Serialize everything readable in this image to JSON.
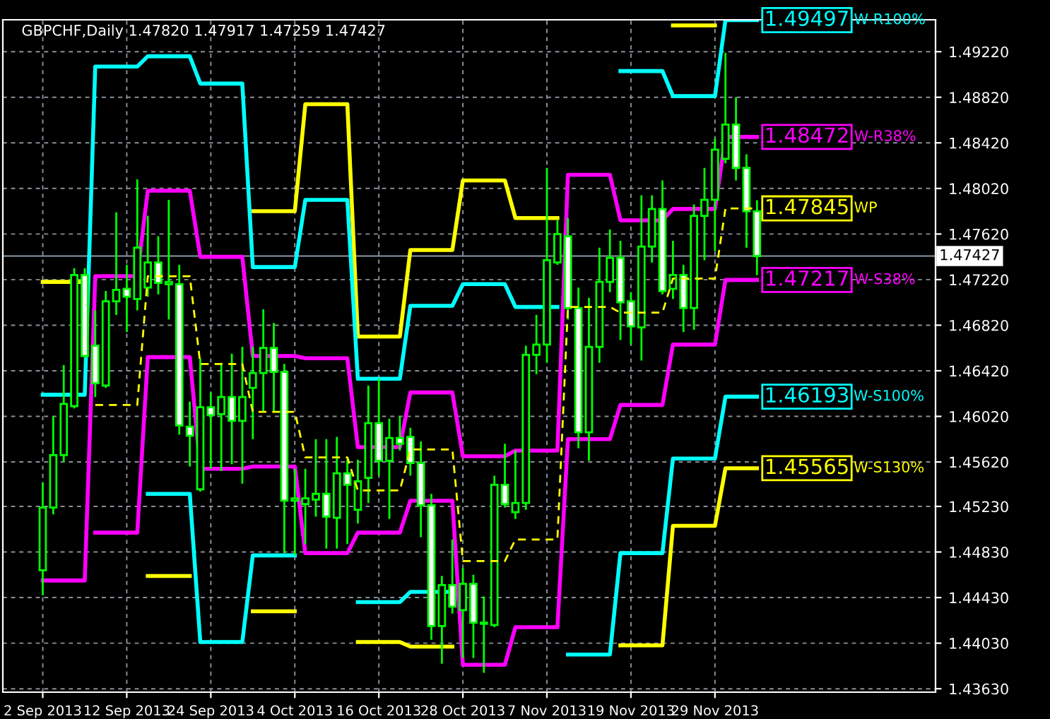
{
  "chart_data": {
    "type": "candlestick",
    "title": "GBPCHF,Daily 1.47820 1.47917 1.47259 1.47427",
    "categories": [
      "2 Sep 2013",
      null,
      null,
      null,
      null,
      null,
      null,
      null,
      "12 Sep 2013",
      null,
      null,
      null,
      null,
      null,
      null,
      null,
      "24 Sep 2013",
      null,
      null,
      null,
      null,
      null,
      null,
      null,
      "4 Oct 2013",
      null,
      null,
      null,
      null,
      null,
      null,
      null,
      "16 Oct 2013",
      null,
      null,
      null,
      null,
      null,
      null,
      null,
      "28 Oct 2013",
      null,
      null,
      null,
      null,
      null,
      null,
      null,
      "7 Nov 2013",
      null,
      null,
      null,
      null,
      null,
      null,
      null,
      "19 Nov 2013",
      null,
      null,
      null,
      null,
      null,
      null,
      null,
      "29 Nov 2013",
      null,
      null,
      null,
      null
    ],
    "ohlc": [
      [
        1.4467,
        1.4544,
        1.4445,
        1.4522
      ],
      [
        1.4522,
        1.4602,
        1.4516,
        1.4568
      ],
      [
        1.4568,
        1.4647,
        1.4562,
        1.4613
      ],
      [
        1.4611,
        1.4732,
        1.4609,
        1.4726
      ],
      [
        1.4726,
        1.4732,
        1.4653,
        1.4655
      ],
      [
        1.4664,
        1.4695,
        1.4619,
        1.4631
      ],
      [
        1.4629,
        1.4712,
        1.4627,
        1.4703
      ],
      [
        1.4703,
        1.4781,
        1.4691,
        1.4713
      ],
      [
        1.4714,
        1.4735,
        1.4676,
        1.4707
      ],
      [
        1.4705,
        1.481,
        1.4695,
        1.475
      ],
      [
        1.4715,
        1.4778,
        1.4707,
        1.4737
      ],
      [
        1.4737,
        1.476,
        1.4709,
        1.4719
      ],
      [
        1.4718,
        1.4792,
        1.4687,
        1.472
      ],
      [
        1.4718,
        1.4735,
        1.4586,
        1.4594
      ],
      [
        1.4593,
        1.4615,
        1.4558,
        1.4585
      ],
      [
        1.4538,
        1.4653,
        1.4536,
        1.461
      ],
      [
        1.461,
        1.4623,
        1.4556,
        1.4603
      ],
      [
        1.4604,
        1.4649,
        1.4554,
        1.4619
      ],
      [
        1.4619,
        1.4657,
        1.456,
        1.4598
      ],
      [
        1.4598,
        1.4663,
        1.4543,
        1.4619
      ],
      [
        1.4627,
        1.4663,
        1.4582,
        1.464
      ],
      [
        1.464,
        1.4696,
        1.4606,
        1.4662
      ],
      [
        1.4662,
        1.4684,
        1.4606,
        1.4641
      ],
      [
        1.4641,
        1.4648,
        1.4482,
        1.4528
      ],
      [
        1.4528,
        1.4556,
        1.448,
        1.453
      ],
      [
        1.4525,
        1.4556,
        1.449,
        1.453
      ],
      [
        1.4529,
        1.4582,
        1.4514,
        1.4534
      ],
      [
        1.4534,
        1.4582,
        1.4486,
        1.4514
      ],
      [
        1.4513,
        1.4584,
        1.4486,
        1.4552
      ],
      [
        1.4552,
        1.4564,
        1.449,
        1.4542
      ],
      [
        1.452,
        1.4564,
        1.4508,
        1.4545
      ],
      [
        1.4548,
        1.4629,
        1.4526,
        1.4596
      ],
      [
        1.4596,
        1.4635,
        1.455,
        1.4563
      ],
      [
        1.4563,
        1.46,
        1.4512,
        1.4583
      ],
      [
        1.4583,
        1.4602,
        1.4572,
        1.4578
      ],
      [
        1.4584,
        1.4592,
        1.455,
        1.4561
      ],
      [
        1.4561,
        1.458,
        1.4496,
        1.4524
      ],
      [
        1.4524,
        1.4534,
        1.4406,
        1.4418
      ],
      [
        1.4418,
        1.4462,
        1.4385,
        1.4454
      ],
      [
        1.4454,
        1.4494,
        1.4429,
        1.4435
      ],
      [
        1.4432,
        1.4469,
        1.439,
        1.4455
      ],
      [
        1.4455,
        1.4463,
        1.439,
        1.4421
      ],
      [
        1.442,
        1.4444,
        1.4377,
        1.4421
      ],
      [
        1.4419,
        1.455,
        1.4417,
        1.4542
      ],
      [
        1.4542,
        1.4578,
        1.4522,
        1.4525
      ],
      [
        1.4518,
        1.4572,
        1.4512,
        1.4526
      ],
      [
        1.4526,
        1.4664,
        1.452,
        1.4656
      ],
      [
        1.4656,
        1.4691,
        1.4639,
        1.4665
      ],
      [
        1.4665,
        1.482,
        1.4649,
        1.4739
      ],
      [
        1.4737,
        1.4774,
        1.4735,
        1.4762
      ],
      [
        1.476,
        1.4776,
        1.4687,
        1.4697
      ],
      [
        1.4697,
        1.4715,
        1.4574,
        1.4588
      ],
      [
        1.4588,
        1.4706,
        1.4563,
        1.4663
      ],
      [
        1.4663,
        1.475,
        1.4649,
        1.472
      ],
      [
        1.472,
        1.4766,
        1.4711,
        1.4741
      ],
      [
        1.4741,
        1.4756,
        1.4669,
        1.4702
      ],
      [
        1.4703,
        1.4711,
        1.4665,
        1.4681
      ],
      [
        1.468,
        1.4796,
        1.4651,
        1.4751
      ],
      [
        1.4751,
        1.4796,
        1.4737,
        1.4784
      ],
      [
        1.4784,
        1.4809,
        1.4709,
        1.4712
      ],
      [
        1.4714,
        1.4756,
        1.4705,
        1.4726
      ],
      [
        1.4726,
        1.4735,
        1.4676,
        1.4697
      ],
      [
        1.4697,
        1.4788,
        1.4678,
        1.4778
      ],
      [
        1.4778,
        1.482,
        1.4739,
        1.4792
      ],
      [
        1.4792,
        1.4846,
        1.4747,
        1.4836
      ],
      [
        1.4828,
        1.4921,
        1.4824,
        1.4858
      ],
      [
        1.4858,
        1.4882,
        1.4809,
        1.482
      ],
      [
        1.482,
        1.4832,
        1.475,
        1.4782
      ],
      [
        1.4782,
        1.47917,
        1.47259,
        1.47427
      ]
    ],
    "series": [
      {
        "type": "line",
        "color": "#ffff00",
        "line_style": "solid",
        "values": [
          1.472,
          1.472,
          1.472,
          1.472,
          1.472,
          null,
          null,
          null,
          null,
          null,
          null,
          null,
          null,
          null,
          null,
          null,
          null,
          null,
          null,
          null,
          1.4782,
          1.4782,
          1.4782,
          1.4782,
          1.4782,
          1.4876,
          1.4876,
          1.4876,
          1.4876,
          1.4876,
          1.4672,
          1.4672,
          1.4672,
          1.4672,
          1.4672,
          1.4748,
          1.4748,
          1.4748,
          1.4748,
          1.4748,
          1.4809,
          1.4809,
          1.4809,
          1.4809,
          1.4809,
          1.4776,
          1.4776,
          1.4776,
          1.4776,
          1.4776,
          null,
          null,
          null,
          null,
          null,
          null,
          null,
          null,
          null,
          null,
          1.4945,
          1.4945,
          1.4945,
          1.4945,
          1.4945,
          null,
          null,
          null,
          null
        ]
      },
      {
        "type": "line",
        "name": "W-R100%",
        "color": "#00ffff",
        "line_style": "solid",
        "values": [
          1.4621,
          1.4621,
          1.4621,
          1.4621,
          1.4621,
          1.4909,
          1.4909,
          1.4909,
          1.4909,
          1.4909,
          1.4918,
          1.4918,
          1.4918,
          1.4918,
          1.4918,
          1.4894,
          1.4894,
          1.4894,
          1.4894,
          1.4894,
          1.4733,
          1.4733,
          1.4733,
          1.4733,
          1.4733,
          1.4792,
          1.4792,
          1.4792,
          1.4792,
          1.4792,
          1.4635,
          1.4635,
          1.4635,
          1.4635,
          1.4635,
          1.4699,
          1.4699,
          1.4699,
          1.4699,
          1.4699,
          1.4718,
          1.4718,
          1.4718,
          1.4718,
          1.4718,
          1.4698,
          1.4698,
          1.4698,
          1.4698,
          1.4698,
          null,
          null,
          null,
          null,
          null,
          1.4905,
          1.4905,
          1.4905,
          1.4905,
          1.4905,
          1.4883,
          1.4883,
          1.4883,
          1.4883,
          1.4883,
          1.49497,
          1.49497,
          1.49497,
          1.49497
        ],
        "value_labels": [
          null,
          null,
          null,
          null,
          null,
          null,
          null,
          null,
          null,
          null,
          null,
          null,
          null,
          null,
          null,
          null,
          null,
          null,
          null,
          null,
          null,
          null,
          null,
          null,
          null,
          null,
          null,
          null,
          null,
          null,
          null,
          null,
          null,
          null,
          null,
          null,
          null,
          null,
          null,
          null,
          null,
          null,
          null,
          null,
          null,
          null,
          null,
          null,
          null,
          null,
          null,
          null,
          null,
          null,
          null,
          null,
          null,
          null,
          null,
          null,
          null,
          null,
          null,
          null,
          null,
          null,
          null,
          null,
          "1.49497"
        ]
      },
      {
        "type": "line",
        "name": "W-R38%",
        "color": "#ff00ff",
        "line_style": "solid",
        "values": [
          1.4458,
          1.4458,
          1.4458,
          1.4458,
          1.4458,
          1.4725,
          1.4725,
          1.4725,
          1.4725,
          1.4725,
          1.48,
          1.48,
          1.48,
          1.48,
          1.48,
          1.4742,
          1.4742,
          1.4742,
          1.4742,
          1.4742,
          1.4655,
          1.4655,
          1.4655,
          1.4655,
          1.4655,
          1.4653,
          1.4653,
          1.4653,
          1.4653,
          1.4653,
          1.4575,
          1.4575,
          1.4575,
          1.4575,
          1.4575,
          1.4623,
          1.4623,
          1.4623,
          1.4623,
          1.4623,
          1.4567,
          1.4567,
          1.4567,
          1.4567,
          1.4567,
          1.4572,
          1.4572,
          1.4572,
          1.4572,
          1.4572,
          1.4814,
          1.4814,
          1.4814,
          1.4814,
          1.4814,
          1.4774,
          1.4774,
          1.4774,
          1.4774,
          1.4774,
          1.4784,
          1.4784,
          1.4784,
          1.4784,
          1.4784,
          1.48472,
          1.48472,
          1.48472,
          1.48472
        ],
        "value_labels": [
          null,
          null,
          null,
          null,
          null,
          null,
          null,
          null,
          null,
          null,
          null,
          null,
          null,
          null,
          null,
          null,
          null,
          null,
          null,
          null,
          null,
          null,
          null,
          null,
          null,
          null,
          null,
          null,
          null,
          null,
          null,
          null,
          null,
          null,
          null,
          null,
          null,
          null,
          null,
          null,
          null,
          null,
          null,
          null,
          null,
          null,
          null,
          null,
          null,
          null,
          null,
          null,
          null,
          null,
          null,
          null,
          null,
          null,
          null,
          null,
          null,
          null,
          null,
          null,
          null,
          null,
          null,
          null,
          "1.48472"
        ]
      },
      {
        "type": "line",
        "name": "WP",
        "color": "#ffff00",
        "line_style": "dashed",
        "values": [
          null,
          null,
          null,
          null,
          null,
          1.4612,
          1.4612,
          1.4612,
          1.4612,
          1.4612,
          1.4725,
          1.4725,
          1.4725,
          1.4725,
          1.4725,
          1.4648,
          1.4648,
          1.4648,
          1.4648,
          1.4648,
          1.4606,
          1.4606,
          1.4606,
          1.4606,
          1.4606,
          1.4566,
          1.4566,
          1.4566,
          1.4566,
          1.4566,
          1.4537,
          1.4537,
          1.4537,
          1.4537,
          1.4537,
          1.4573,
          1.4573,
          1.4573,
          1.4573,
          1.4573,
          1.4475,
          1.4475,
          1.4475,
          1.4475,
          1.4475,
          1.4494,
          1.4494,
          1.4494,
          1.4494,
          1.4494,
          1.4698,
          1.4698,
          1.4698,
          1.4698,
          1.4698,
          1.4693,
          1.4693,
          1.4693,
          1.4693,
          1.4693,
          1.4723,
          1.4723,
          1.4723,
          1.4723,
          1.4723,
          1.47845,
          1.47845,
          1.47845,
          1.47845
        ],
        "value_labels": [
          null,
          null,
          null,
          null,
          null,
          null,
          null,
          null,
          null,
          null,
          null,
          null,
          null,
          null,
          null,
          null,
          null,
          null,
          null,
          null,
          null,
          null,
          null,
          null,
          null,
          null,
          null,
          null,
          null,
          null,
          null,
          null,
          null,
          null,
          null,
          null,
          null,
          null,
          null,
          null,
          null,
          null,
          null,
          null,
          null,
          null,
          null,
          null,
          null,
          null,
          null,
          null,
          null,
          null,
          null,
          null,
          null,
          null,
          null,
          null,
          null,
          null,
          null,
          null,
          null,
          null,
          null,
          null,
          "1.47845"
        ]
      },
      {
        "type": "line",
        "name": "W-S38%",
        "color": "#ff00ff",
        "line_style": "solid",
        "values": [
          null,
          null,
          null,
          null,
          null,
          1.45,
          1.45,
          1.45,
          1.45,
          1.45,
          1.4654,
          1.4654,
          1.4654,
          1.4654,
          1.4654,
          1.4556,
          1.4556,
          1.4556,
          1.4556,
          1.4556,
          1.4558,
          1.4558,
          1.4558,
          1.4558,
          1.4558,
          1.4482,
          1.4482,
          1.4482,
          1.4482,
          1.4482,
          1.45,
          1.45,
          1.45,
          1.45,
          1.45,
          1.4528,
          1.4528,
          1.4528,
          1.4528,
          1.4528,
          1.4384,
          1.4384,
          1.4384,
          1.4384,
          1.4384,
          1.4417,
          1.4417,
          1.4417,
          1.4417,
          1.4417,
          1.4582,
          1.4582,
          1.4582,
          1.4582,
          1.4582,
          1.4612,
          1.4612,
          1.4612,
          1.4612,
          1.4612,
          1.4665,
          1.4665,
          1.4665,
          1.4665,
          1.4665,
          1.47217,
          1.47217,
          1.47217,
          1.47217
        ],
        "value_labels": [
          null,
          null,
          null,
          null,
          null,
          null,
          null,
          null,
          null,
          null,
          null,
          null,
          null,
          null,
          null,
          null,
          null,
          null,
          null,
          null,
          null,
          null,
          null,
          null,
          null,
          null,
          null,
          null,
          null,
          null,
          null,
          null,
          null,
          null,
          null,
          null,
          null,
          null,
          null,
          null,
          null,
          null,
          null,
          null,
          null,
          null,
          null,
          null,
          null,
          null,
          null,
          null,
          null,
          null,
          null,
          null,
          null,
          null,
          null,
          null,
          null,
          null,
          null,
          null,
          null,
          null,
          null,
          null,
          "1.47217"
        ]
      },
      {
        "type": "line",
        "name": "W-S100%",
        "color": "#00ffff",
        "line_style": "solid",
        "values": [
          null,
          null,
          null,
          null,
          null,
          null,
          null,
          null,
          null,
          null,
          1.4534,
          1.4534,
          1.4534,
          1.4534,
          1.4534,
          1.4404,
          1.4404,
          1.4404,
          1.4404,
          1.4404,
          1.448,
          1.448,
          1.448,
          1.448,
          1.448,
          null,
          null,
          null,
          null,
          null,
          1.4439,
          1.4439,
          1.4439,
          1.4439,
          1.4439,
          1.4448,
          1.4448,
          1.4448,
          1.4448,
          1.4448,
          null,
          null,
          null,
          null,
          null,
          null,
          null,
          null,
          null,
          null,
          1.4393,
          1.4393,
          1.4393,
          1.4393,
          1.4393,
          1.4482,
          1.4482,
          1.4482,
          1.4482,
          1.4482,
          1.4565,
          1.4565,
          1.4565,
          1.4565,
          1.4565,
          1.46193,
          1.46193,
          1.46193,
          1.46193
        ],
        "value_labels": [
          null,
          null,
          null,
          null,
          null,
          null,
          null,
          null,
          null,
          null,
          null,
          null,
          null,
          null,
          null,
          null,
          null,
          null,
          null,
          null,
          null,
          null,
          null,
          null,
          null,
          null,
          null,
          null,
          null,
          null,
          null,
          null,
          null,
          null,
          null,
          null,
          null,
          null,
          null,
          null,
          null,
          null,
          null,
          null,
          null,
          null,
          null,
          null,
          null,
          null,
          null,
          null,
          null,
          null,
          null,
          null,
          null,
          null,
          null,
          null,
          null,
          null,
          null,
          null,
          null,
          null,
          null,
          null,
          "1.46193"
        ]
      },
      {
        "type": "line",
        "name": "W-S130%",
        "color": "#ffff00",
        "line_style": "solid",
        "values": [
          null,
          null,
          null,
          null,
          null,
          null,
          null,
          null,
          null,
          null,
          1.4462,
          1.4462,
          1.4462,
          1.4462,
          1.4462,
          null,
          null,
          null,
          null,
          null,
          1.4431,
          1.4431,
          1.4431,
          1.4431,
          1.4431,
          null,
          null,
          null,
          null,
          null,
          1.4404,
          1.4404,
          1.4404,
          1.4404,
          1.4404,
          1.44,
          1.44,
          1.44,
          1.44,
          1.44,
          null,
          null,
          null,
          null,
          null,
          null,
          null,
          null,
          null,
          null,
          null,
          null,
          null,
          null,
          null,
          1.4401,
          1.4401,
          1.4401,
          1.4401,
          1.4401,
          1.4506,
          1.4506,
          1.4506,
          1.4506,
          1.4506,
          1.45565,
          1.45565,
          1.45565,
          1.45565
        ],
        "value_labels": [
          null,
          null,
          null,
          null,
          null,
          null,
          null,
          null,
          null,
          null,
          null,
          null,
          null,
          null,
          null,
          null,
          null,
          null,
          null,
          null,
          null,
          null,
          null,
          null,
          null,
          null,
          null,
          null,
          null,
          null,
          null,
          null,
          null,
          null,
          null,
          null,
          null,
          null,
          null,
          null,
          null,
          null,
          null,
          null,
          null,
          null,
          null,
          null,
          null,
          null,
          null,
          null,
          null,
          null,
          null,
          null,
          null,
          null,
          null,
          null,
          null,
          null,
          null,
          null,
          null,
          null,
          null,
          null,
          "1.45565"
        ]
      }
    ],
    "ref_lines": [
      {
        "axis": "y",
        "value": 1.47427,
        "label": "1.47427",
        "color": "#8a9aa8"
      }
    ],
    "ylim": [
      1.436,
      1.495
    ],
    "yticks": [
      {
        "value": 1.4363,
        "label": "1.43630"
      },
      {
        "value": 1.4403,
        "label": "1.44030"
      },
      {
        "value": 1.4443,
        "label": "1.44430"
      },
      {
        "value": 1.4483,
        "label": "1.44830"
      },
      {
        "value": 1.4523,
        "label": "1.45230"
      },
      {
        "value": 1.4562,
        "label": "1.45620"
      },
      {
        "value": 1.4602,
        "label": "1.46020"
      },
      {
        "value": 1.4642,
        "label": "1.46420"
      },
      {
        "value": 1.4682,
        "label": "1.46820"
      },
      {
        "value": 1.4722,
        "label": "1.47220"
      },
      {
        "value": 1.4762,
        "label": "1.47620"
      },
      {
        "value": 1.4802,
        "label": "1.48020"
      },
      {
        "value": 1.4842,
        "label": "1.48420"
      },
      {
        "value": 1.4882,
        "label": "1.48820"
      },
      {
        "value": 1.4922,
        "label": "1.49220"
      }
    ],
    "grid": true,
    "legend": false
  }
}
